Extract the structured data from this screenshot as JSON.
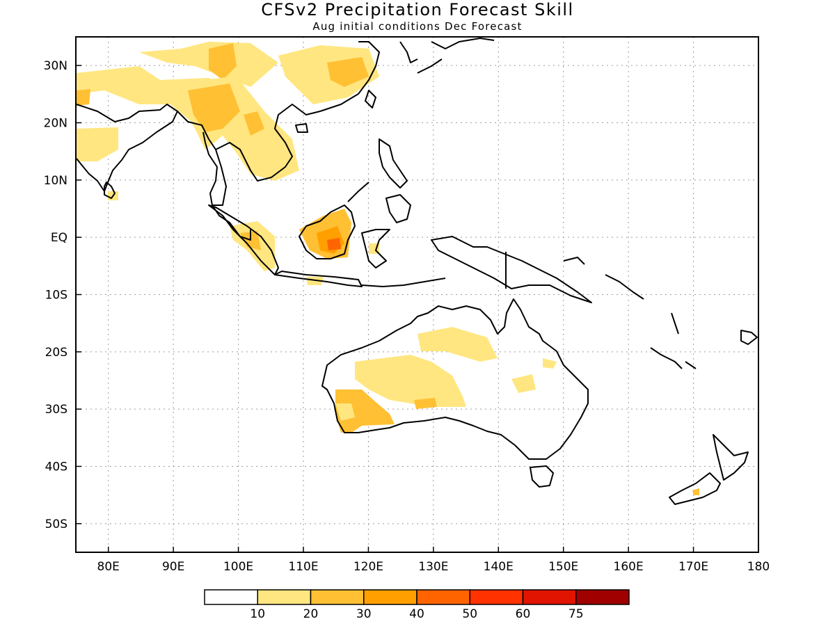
{
  "title": "CFSv2 Precipitation Forecast Skill",
  "subtitle": "Aug initial conditions  Dec Forecast",
  "map": {
    "lon_range": [
      75,
      180
    ],
    "lat_range": [
      -55,
      35
    ],
    "grid": "dotted",
    "lat_ticks": [
      {
        "lat": 30,
        "label": "30N"
      },
      {
        "lat": 20,
        "label": "20N"
      },
      {
        "lat": 10,
        "label": "10N"
      },
      {
        "lat": 0,
        "label": "EQ"
      },
      {
        "lat": -10,
        "label": "10S"
      },
      {
        "lat": -20,
        "label": "20S"
      },
      {
        "lat": -30,
        "label": "30S"
      },
      {
        "lat": -40,
        "label": "40S"
      },
      {
        "lat": -50,
        "label": "50S"
      }
    ],
    "lon_ticks": [
      {
        "lon": 80,
        "label": "80E"
      },
      {
        "lon": 90,
        "label": "90E"
      },
      {
        "lon": 100,
        "label": "100E"
      },
      {
        "lon": 110,
        "label": "110E"
      },
      {
        "lon": 120,
        "label": "120E"
      },
      {
        "lon": 130,
        "label": "130E"
      },
      {
        "lon": 140,
        "label": "140E"
      },
      {
        "lon": 150,
        "label": "150E"
      },
      {
        "lon": 160,
        "label": "160E"
      },
      {
        "lon": 170,
        "label": "170E"
      },
      {
        "lon": 180,
        "label": "180"
      }
    ]
  },
  "colorbar": {
    "colors": [
      "#ffffff",
      "#ffe680",
      "#ffc033",
      "#ffa000",
      "#ff6400",
      "#ff3200",
      "#e01400",
      "#a00000"
    ],
    "labels": [
      "10",
      "20",
      "30",
      "40",
      "50",
      "60",
      "75"
    ]
  },
  "palette": {
    "c10": "#ffe680",
    "c20": "#ffc033",
    "c30": "#ffa000",
    "c40": "#ff6400"
  }
}
